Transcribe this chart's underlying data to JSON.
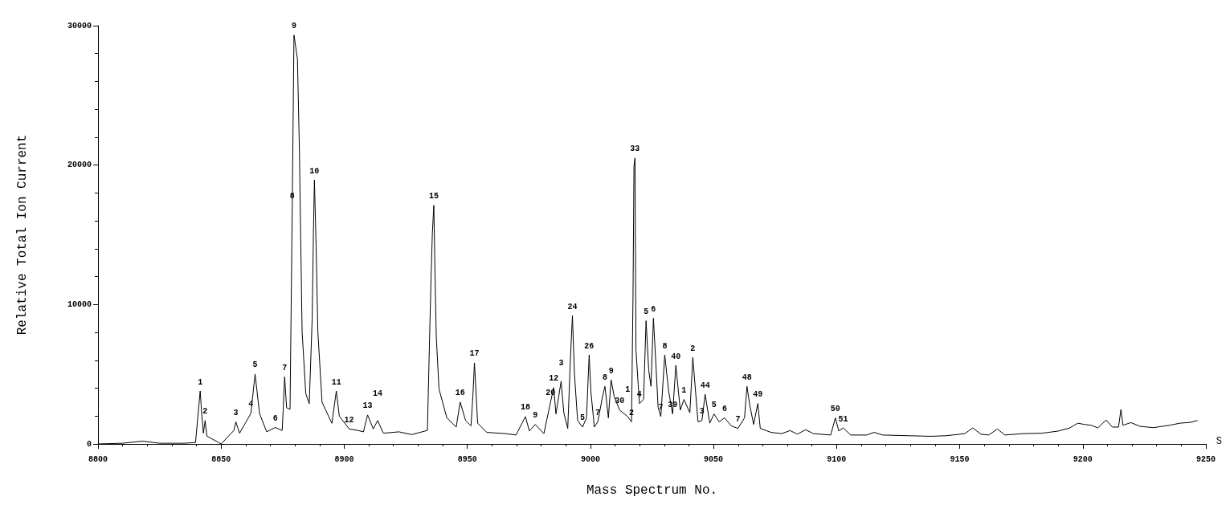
{
  "chart_data": {
    "type": "line",
    "xlabel": "Mass Spectrum No.",
    "ylabel": "Relative Total Ion Current",
    "xlim": [
      8800,
      9250
    ],
    "xticks": [
      8800,
      8850,
      8900,
      8950,
      9000,
      9050,
      9100,
      9150,
      9200,
      9250
    ],
    "ylim": [
      0,
      30000
    ],
    "yticks": [
      0,
      10000,
      20000,
      30000
    ],
    "marker": "none",
    "series": [
      {
        "color": "#000000",
        "x": [
          8800,
          8810,
          8818,
          8825,
          8835,
          8839.6,
          8841.5,
          8842.1,
          8842.8,
          8843.5,
          8844.2,
          8850,
          8855.2,
          8856,
          8857.5,
          8859.8,
          8862.1,
          8863.8,
          8865.6,
          8868.5,
          8872,
          8874.8,
          8875.2,
          8875.8,
          8876.6,
          8878,
          8878.4,
          8878.9,
          8879.6,
          8881,
          8881.8,
          8882.3,
          8882.9,
          8884.4,
          8885.8,
          8887,
          8887.5,
          8887.9,
          8888.6,
          8889.3,
          8891,
          8895,
          8896.8,
          8898,
          8902,
          8905.5,
          8907.8,
          8909.5,
          8911.8,
          8913.6,
          8915.9,
          8922.2,
          8927.4,
          8933.8,
          8934.6,
          8935.3,
          8935.8,
          8936.4,
          8936.9,
          8937.4,
          8938.5,
          8941.7,
          8945.5,
          8947.1,
          8949.3,
          8951.5,
          8952.3,
          8952.9,
          8954.2,
          8957.9,
          8965.5,
          8969.8,
          8973.6,
          8975.2,
          8977.6,
          8981.1,
          8983.8,
          8985.1,
          8986,
          8987.1,
          8988.1,
          8989.2,
          8990.8,
          8991.9,
          8992.7,
          8993.5,
          8994.8,
          8996.8,
          8998.4,
          8999.5,
          9000.2,
          9001.6,
          9003,
          9004.9,
          9005.9,
          9007.3,
          9008.4,
          9009.7,
          9011.9,
          9015.1,
          9016.7,
          9017.3,
          9017.7,
          9018.1,
          9018.5,
          9019.9,
          9021.6,
          9022.6,
          9023.7,
          9024.6,
          9025.6,
          9026.4,
          9027.5,
          9028.6,
          9030.2,
          9031.8,
          9033.4,
          9034.7,
          9036.5,
          9038,
          9040.4,
          9041.6,
          9043.7,
          9045.3,
          9046.6,
          9048.5,
          9050.2,
          9052.3,
          9054.5,
          9057.2,
          9059.9,
          9062.6,
          9063.6,
          9064.7,
          9066.3,
          9068,
          9069,
          9073.4,
          9077.7,
          9081.1,
          9084.1,
          9087.4,
          9090.6,
          9097.6,
          9099.5,
          9100.9,
          9102.7,
          9105.7,
          9112.2,
          9115.2,
          9118.7,
          9129.4,
          9138.1,
          9144.5,
          9152.1,
          9155.3,
          9158.6,
          9161.8,
          9165.3,
          9168.3,
          9175.8,
          9183.4,
          9189.9,
          9194.7,
          9198,
          9200.6,
          9203.4,
          9206.1,
          9209.5,
          9212,
          9214.5,
          9215.5,
          9216.3,
          9219.5,
          9223.3,
          9228.7,
          9235.2,
          9239.5,
          9243.8,
          9246.5
        ],
        "values": [
          0,
          50,
          200,
          50,
          50,
          100,
          3800,
          2190,
          770,
          1680,
          570,
          0,
          970,
          1580,
          770,
          1480,
          2190,
          5010,
          2190,
          870,
          1180,
          970,
          2390,
          4810,
          2590,
          2490,
          9050,
          17120,
          29330,
          27610,
          21150,
          15100,
          8040,
          3600,
          2890,
          9050,
          15100,
          18940,
          14090,
          8040,
          2990,
          1480,
          3800,
          2000,
          1080,
          970,
          870,
          2080,
          1080,
          1680,
          770,
          870,
          670,
          970,
          7030,
          12080,
          15100,
          17120,
          12030,
          7700,
          3940,
          1870,
          1210,
          3000,
          1680,
          1300,
          3560,
          5820,
          1490,
          830,
          740,
          640,
          1960,
          930,
          1400,
          740,
          3000,
          4040,
          2150,
          3370,
          4500,
          2240,
          1110,
          6200,
          9210,
          5070,
          1680,
          1210,
          1870,
          6390,
          3750,
          1210,
          1590,
          3370,
          4130,
          1870,
          4600,
          3370,
          2430,
          1960,
          1590,
          10530,
          19940,
          20510,
          6760,
          2900,
          3190,
          8840,
          5260,
          4130,
          9020,
          6390,
          2620,
          1960,
          6390,
          3750,
          2150,
          5640,
          2430,
          3190,
          2240,
          6200,
          1590,
          1680,
          3560,
          1490,
          2150,
          1590,
          1870,
          1300,
          1110,
          1870,
          4130,
          2810,
          1400,
          2900,
          1110,
          830,
          740,
          960,
          700,
          1020,
          740,
          640,
          1870,
          930,
          1150,
          640,
          640,
          830,
          640,
          590,
          550,
          590,
          740,
          1150,
          700,
          640,
          1080,
          640,
          740,
          770,
          920,
          1150,
          1490,
          1400,
          1340,
          1150,
          1720,
          1210,
          1210,
          2470,
          1340,
          1530,
          1260,
          1170,
          1340,
          1490,
          1550,
          1680
        ]
      }
    ],
    "annotations": [
      {
        "text": "1",
        "x": 8841.5,
        "y": 3800
      },
      {
        "text": "2",
        "x": 8843.5,
        "y": 1680
      },
      {
        "text": "3",
        "x": 8856,
        "y": 1580
      },
      {
        "text": "4",
        "x": 8862.1,
        "y": 2190
      },
      {
        "text": "5",
        "x": 8863.8,
        "y": 5010
      },
      {
        "text": "6",
        "x": 8872,
        "y": 1180
      },
      {
        "text": "7",
        "x": 8875.8,
        "y": 4810
      },
      {
        "text": "8",
        "x": 8878.9,
        "y": 17120
      },
      {
        "text": "9",
        "x": 8879.6,
        "y": 29330
      },
      {
        "text": "10",
        "x": 8887.9,
        "y": 18940
      },
      {
        "text": "11",
        "x": 8896.8,
        "y": 3800
      },
      {
        "text": "12",
        "x": 8902,
        "y": 1080
      },
      {
        "text": "13",
        "x": 8909.5,
        "y": 2080
      },
      {
        "text": "14",
        "x": 8913.6,
        "y": 1680
      },
      {
        "text": "15",
        "x": 8936.4,
        "y": 17120
      },
      {
        "text": "16",
        "x": 8947.1,
        "y": 3000
      },
      {
        "text": "17",
        "x": 8952.9,
        "y": 5820
      },
      {
        "text": "18",
        "x": 8973.6,
        "y": 1960
      },
      {
        "text": "9",
        "x": 8977.6,
        "y": 1400
      },
      {
        "text": "20",
        "x": 8983.8,
        "y": 3000
      },
      {
        "text": "12",
        "x": 8985.1,
        "y": 4040
      },
      {
        "text": "3",
        "x": 8988.1,
        "y": 4500
      },
      {
        "text": "24",
        "x": 8992.7,
        "y": 9210
      },
      {
        "text": "5",
        "x": 8996.8,
        "y": 1210
      },
      {
        "text": "26",
        "x": 8999.5,
        "y": 6390
      },
      {
        "text": "7",
        "x": 9003,
        "y": 1590
      },
      {
        "text": "8",
        "x": 9005.9,
        "y": 4130
      },
      {
        "text": "9",
        "x": 9008.4,
        "y": 4600
      },
      {
        "text": "30",
        "x": 9011.9,
        "y": 2430
      },
      {
        "text": "1",
        "x": 9015.1,
        "y": 1960
      },
      {
        "text": "2",
        "x": 9016.7,
        "y": 1590
      },
      {
        "text": "33",
        "x": 9018.1,
        "y": 20510
      },
      {
        "text": "4",
        "x": 9019.9,
        "y": 2900
      },
      {
        "text": "5",
        "x": 9022.6,
        "y": 8840
      },
      {
        "text": "6",
        "x": 9025.6,
        "y": 9020
      },
      {
        "text": "7",
        "x": 9028.6,
        "y": 1960
      },
      {
        "text": "8",
        "x": 9030.2,
        "y": 6390
      },
      {
        "text": "39",
        "x": 9033.4,
        "y": 2150
      },
      {
        "text": "40",
        "x": 9034.7,
        "y": 5640
      },
      {
        "text": "1",
        "x": 9038,
        "y": 3190
      },
      {
        "text": "2",
        "x": 9041.6,
        "y": 6200
      },
      {
        "text": "3",
        "x": 9045.3,
        "y": 1680
      },
      {
        "text": "44",
        "x": 9046.6,
        "y": 3560
      },
      {
        "text": "5",
        "x": 9050.2,
        "y": 2150
      },
      {
        "text": "6",
        "x": 9054.5,
        "y": 1870
      },
      {
        "text": "7",
        "x": 9059.9,
        "y": 1110
      },
      {
        "text": "48",
        "x": 9063.6,
        "y": 4130
      },
      {
        "text": "49",
        "x": 9068,
        "y": 2900
      },
      {
        "text": "50",
        "x": 9099.5,
        "y": 1870
      },
      {
        "text": "51",
        "x": 9102.7,
        "y": 1150
      },
      "S"
    ]
  }
}
